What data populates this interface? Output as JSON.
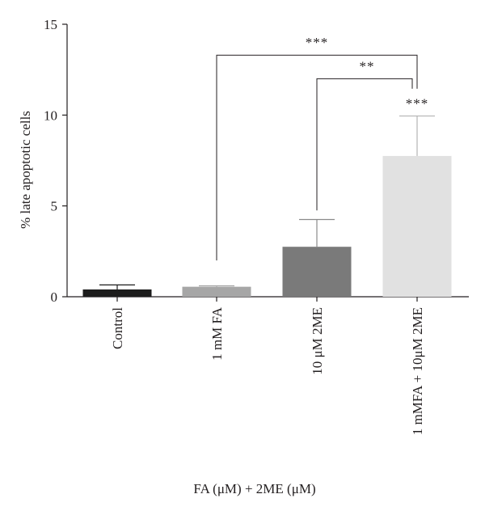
{
  "chart_data": {
    "type": "bar",
    "categories": [
      "Control",
      "1 mM FA",
      "10 μM 2ME",
      "1 mMFA + 10μM 2ME"
    ],
    "values": [
      0.4,
      0.55,
      2.75,
      7.75
    ],
    "errors": [
      0.25,
      0.05,
      1.5,
      2.2
    ],
    "bar_colors": [
      "#1c1c1c",
      "#a6a6a6",
      "#7a7a7a",
      "#e1e1e1"
    ],
    "error_colors": [
      "#1c1c1c",
      "#a6a6a6",
      "#8a8a8a",
      "#b3b3b3"
    ],
    "ylabel": "% late apoptotic cells",
    "xlabel": "FA (μM) + 2ME (μM)",
    "ylim": [
      0,
      15
    ],
    "yticks": [
      0,
      5,
      10,
      15
    ],
    "grid": false,
    "significance": [
      {
        "from": 1,
        "to": 3,
        "label": "***",
        "y": 13.3
      },
      {
        "from": 2,
        "to": 3,
        "label": "**",
        "y": 12.0
      },
      {
        "bar": 3,
        "label": "***"
      }
    ]
  }
}
